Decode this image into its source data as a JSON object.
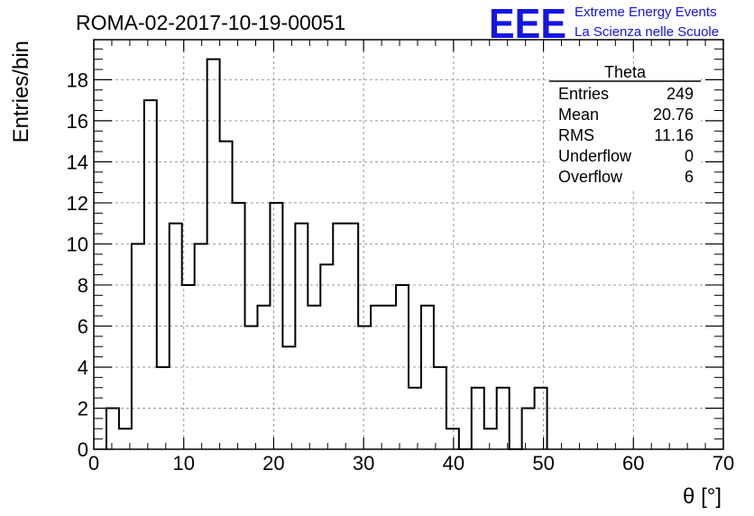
{
  "header": {
    "run_title": "ROMA-02-2017-10-19-00051",
    "logo": "EEE",
    "project_line1": "Extreme Energy Events",
    "project_line2": "La Scienza nelle Scuole"
  },
  "stats_box": {
    "title": "Theta",
    "rows": [
      {
        "label": "Entries",
        "value": "249"
      },
      {
        "label": "Mean",
        "value": "20.76"
      },
      {
        "label": "RMS",
        "value": "11.16"
      },
      {
        "label": "Underflow",
        "value": "0"
      },
      {
        "label": "Overflow",
        "value": "6"
      }
    ]
  },
  "chart_data": {
    "type": "bar",
    "style": "step-histogram",
    "xlabel": "θ [°]",
    "ylabel": "Entries/bin",
    "xlim": [
      0,
      70
    ],
    "ylim": [
      0,
      19.95
    ],
    "grid": true,
    "bin_width": 1.4,
    "bin_start": 1.4,
    "values": [
      2,
      1,
      10,
      17,
      4,
      11,
      8,
      10,
      19,
      15,
      12,
      6,
      7,
      12,
      5,
      11,
      7,
      9,
      11,
      11,
      6,
      7,
      7,
      8,
      3,
      7,
      4,
      1,
      0,
      3,
      1,
      3,
      0,
      2,
      3
    ],
    "x_ticks": [
      "0",
      "10",
      "20",
      "30",
      "40",
      "50",
      "60",
      "70"
    ],
    "y_ticks": [
      "0",
      "2",
      "4",
      "6",
      "8",
      "10",
      "12",
      "14",
      "16",
      "18"
    ],
    "colors": {
      "line": "#000000",
      "grid": "#9a9a9a",
      "logo": "#1414e6"
    }
  }
}
